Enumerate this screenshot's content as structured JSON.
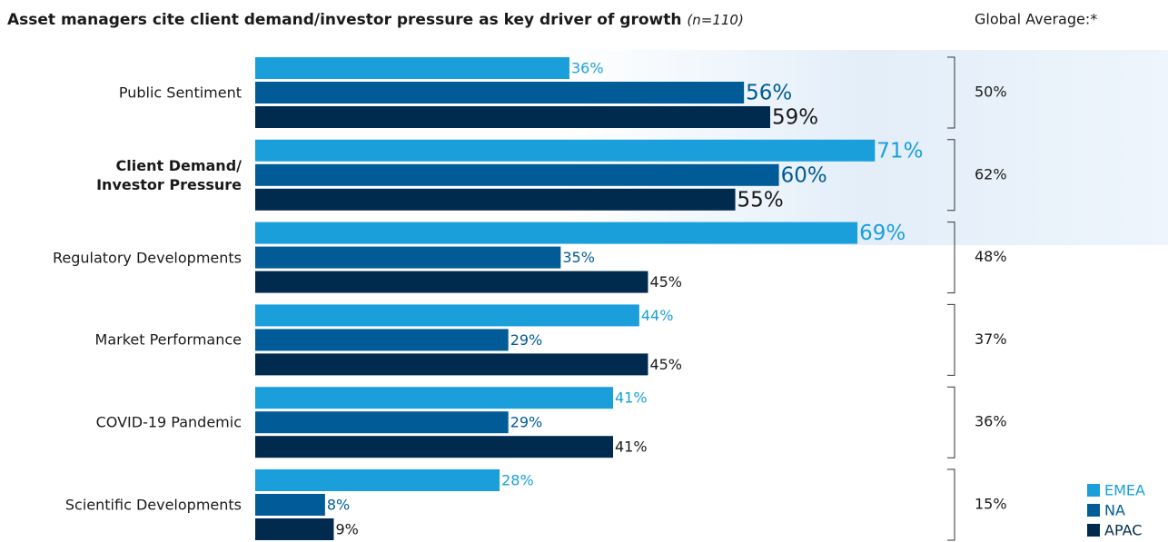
{
  "chart_data": {
    "type": "bar",
    "orientation": "horizontal",
    "title": "Asset managers cite client demand/investor pressure as key driver of growth",
    "subtitle": "(n=110)",
    "categories": [
      "Public Sentiment",
      "Client Demand/\nInvestor Pressure",
      "Regulatory Developments",
      "Market Performance",
      "COVID-19 Pandemic",
      "Scientific Developments"
    ],
    "xlim": [
      0,
      100
    ],
    "series": [
      {
        "name": "EMEA",
        "color": "#1a9fdb",
        "values": [
          36,
          71,
          69,
          44,
          41,
          28
        ],
        "value_labels": [
          "36%",
          "71%",
          "69%",
          "44%",
          "41%",
          "28%"
        ]
      },
      {
        "name": "NA",
        "color": "#005b96",
        "values": [
          56,
          60,
          35,
          29,
          29,
          8
        ],
        "value_labels": [
          "56%",
          "60%",
          "35%",
          "29%",
          "29%",
          "8%"
        ]
      },
      {
        "name": "APAC",
        "color": "#002b4f",
        "values": [
          59,
          55,
          45,
          45,
          41,
          9
        ],
        "value_labels": [
          "59%",
          "55%",
          "45%",
          "45%",
          "41%",
          "9%"
        ]
      }
    ],
    "global_average": {
      "label": "Global Average:*",
      "values": [
        50,
        62,
        48,
        37,
        36,
        15
      ],
      "value_labels": [
        "50%",
        "62%",
        "48%",
        "37%",
        "36%",
        "15%"
      ]
    },
    "legend": "bottom-right"
  }
}
